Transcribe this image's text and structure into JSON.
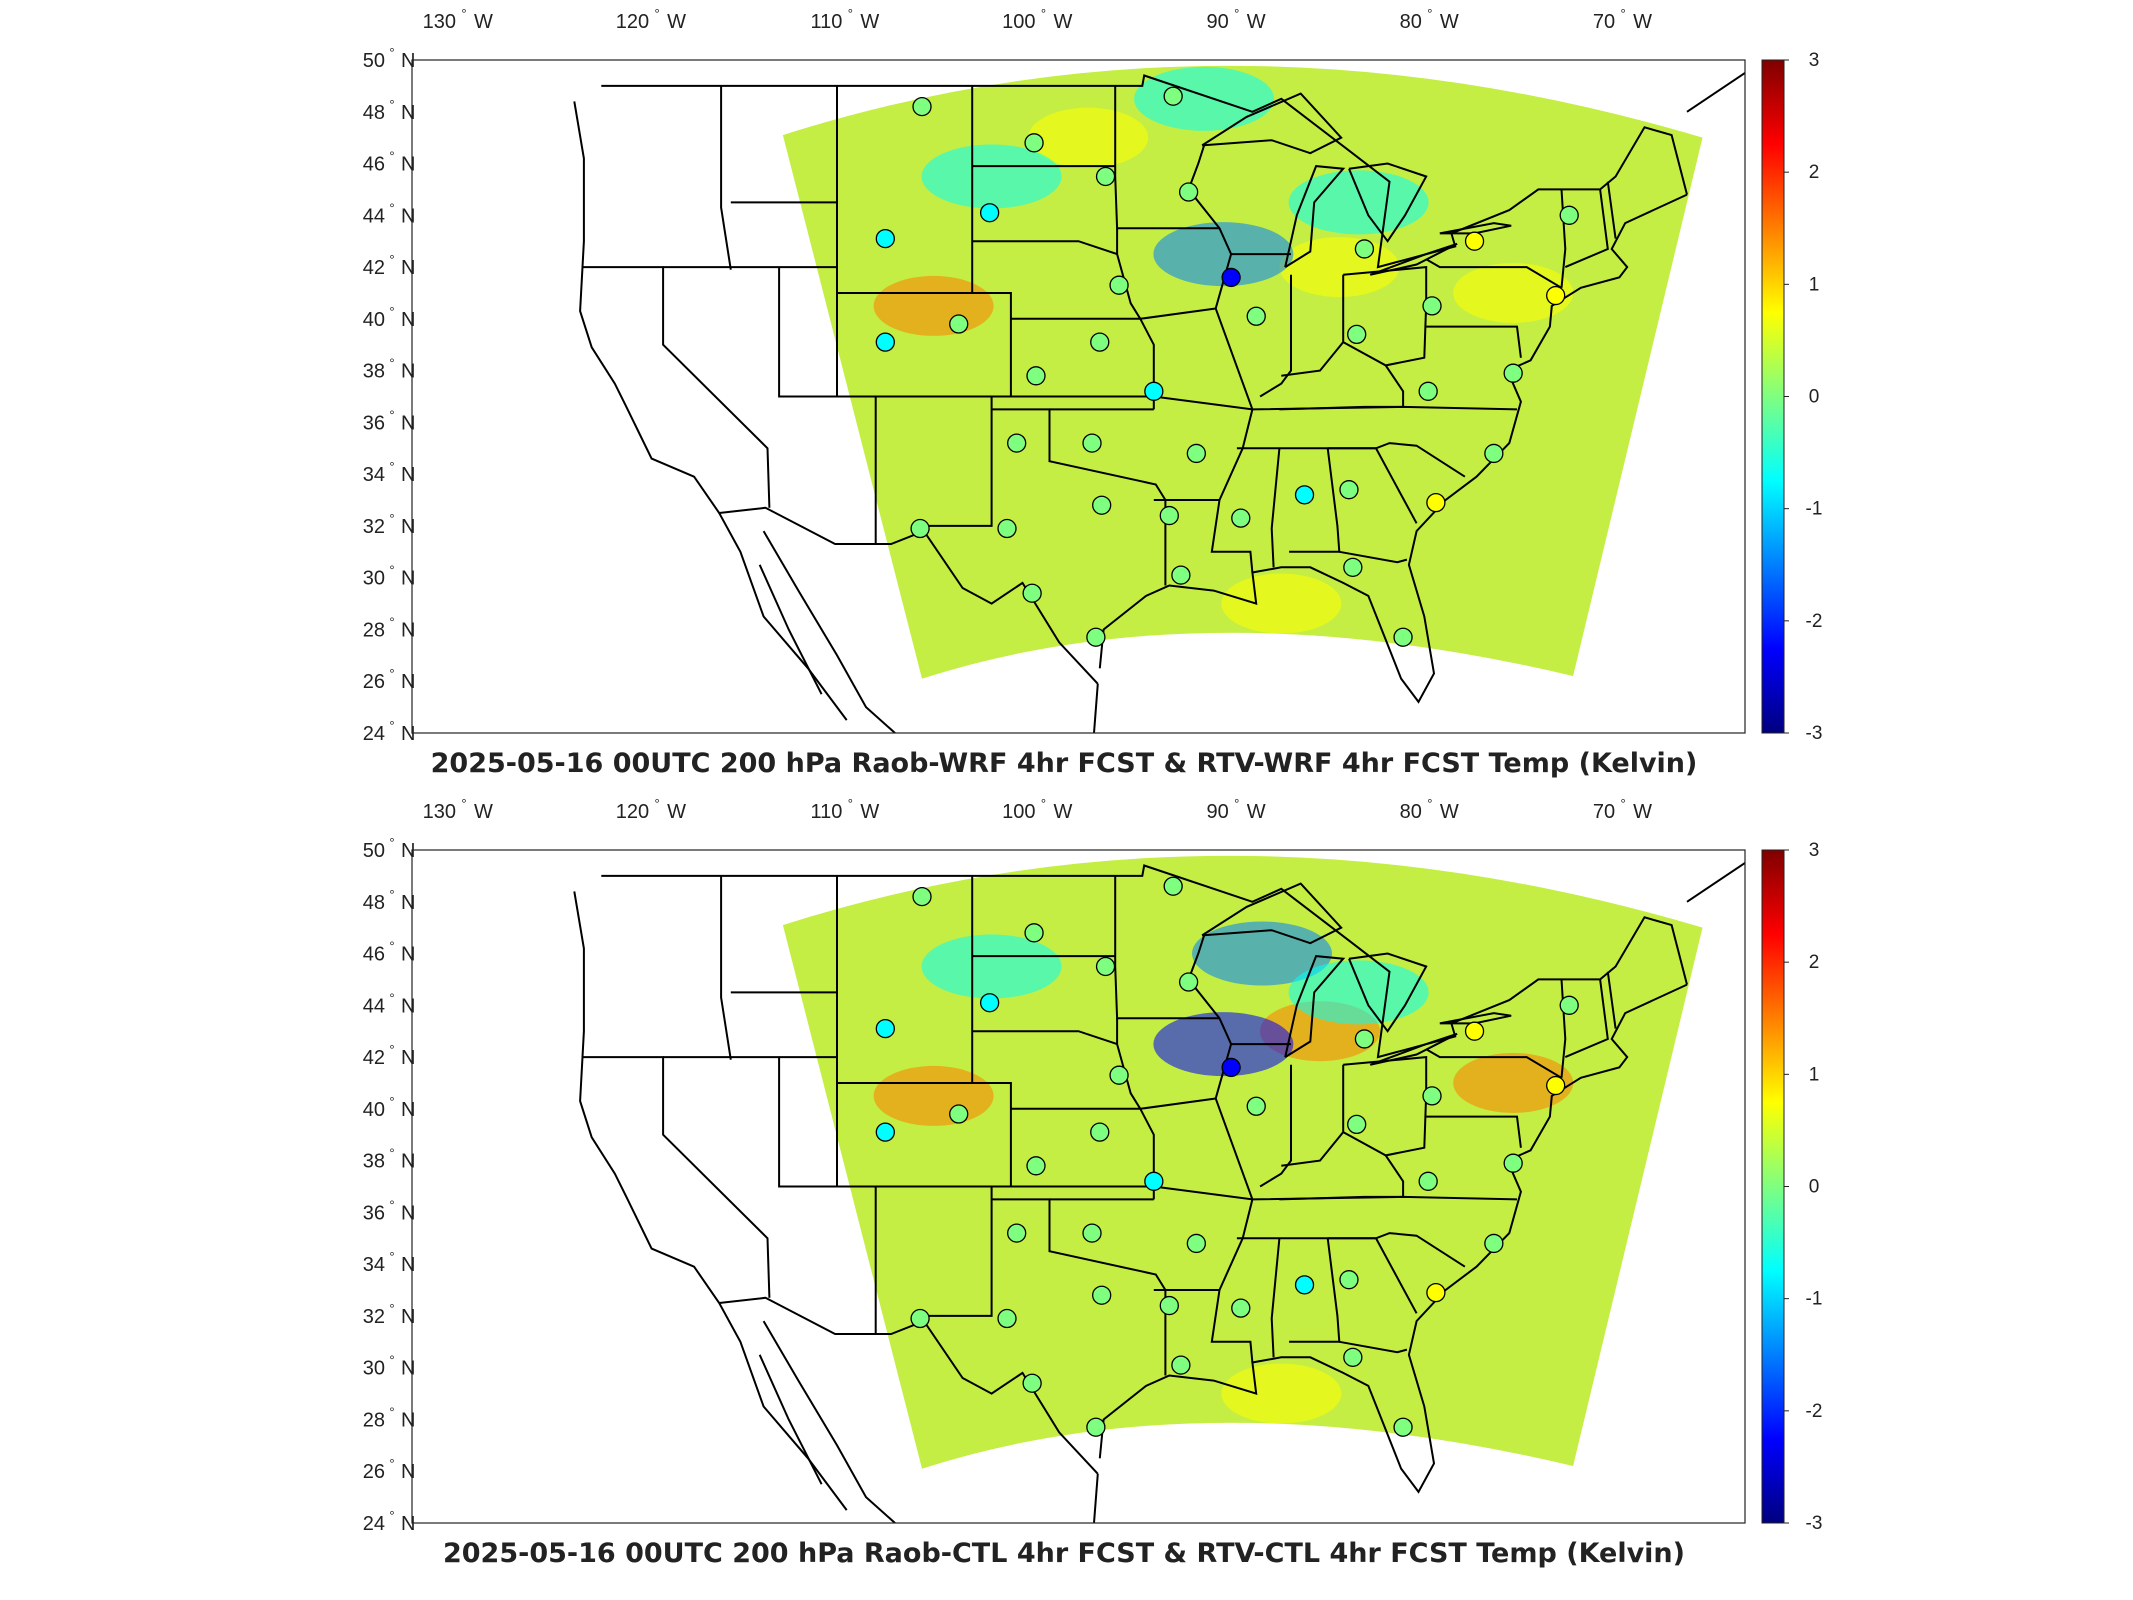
{
  "panels": [
    {
      "id": "top",
      "title": "2025-05-16 00UTC 200 hPa Raob-WRF 4hr FCST & RTV-WRF 4hr FCST Temp (Kelvin)",
      "stations_highlight": [
        "cyan-north-plains",
        "cyan-midwest",
        "blue-great-lakes",
        "cyan-gulf"
      ],
      "hotspots": [
        {
          "lon": -98,
          "lat": 47,
          "value": 0.9
        },
        {
          "lon": -106,
          "lat": 40.5,
          "value": 1.3
        },
        {
          "lon": -85,
          "lat": 42,
          "value": 1.0
        },
        {
          "lon": -76,
          "lat": 41,
          "value": 1.1
        },
        {
          "lon": -88,
          "lat": 29,
          "value": 0.8
        }
      ],
      "coldspots": [
        {
          "lon": -91,
          "lat": 42.5,
          "value": -1.8
        },
        {
          "lon": -92,
          "lat": 48.5,
          "value": -1.0
        },
        {
          "lon": -84,
          "lat": 44.5,
          "value": -0.9
        },
        {
          "lon": -103,
          "lat": 45.5,
          "value": -0.7
        }
      ]
    },
    {
      "id": "bottom",
      "title": "2025-05-16 00UTC 200 hPa Raob-CTL 4hr FCST & RTV-CTL 4hr FCST Temp (Kelvin)",
      "hotspots": [
        {
          "lon": -106,
          "lat": 40.5,
          "value": 1.2
        },
        {
          "lon": -76,
          "lat": 41,
          "value": 1.2
        },
        {
          "lon": -88,
          "lat": 29,
          "value": 0.8
        },
        {
          "lon": -86,
          "lat": 43,
          "value": 1.5
        }
      ],
      "coldspots": [
        {
          "lon": -91,
          "lat": 42.5,
          "value": -1.9
        },
        {
          "lon": -89,
          "lat": 46,
          "value": -1.3
        },
        {
          "lon": -84,
          "lat": 44.5,
          "value": -1.1
        },
        {
          "lon": -103,
          "lat": 45.5,
          "value": -0.8
        }
      ]
    }
  ],
  "lon_ticks": [
    {
      "deg": "130",
      "dir": "W"
    },
    {
      "deg": "120",
      "dir": "W"
    },
    {
      "deg": "110",
      "dir": "W"
    },
    {
      "deg": "100",
      "dir": "W"
    },
    {
      "deg": "90",
      "dir": "W"
    },
    {
      "deg": "80",
      "dir": "W"
    },
    {
      "deg": "70",
      "dir": "W"
    }
  ],
  "lat_ticks": [
    {
      "deg": "50",
      "dir": "N"
    },
    {
      "deg": "48",
      "dir": "N"
    },
    {
      "deg": "46",
      "dir": "N"
    },
    {
      "deg": "44",
      "dir": "N"
    },
    {
      "deg": "42",
      "dir": "N"
    },
    {
      "deg": "40",
      "dir": "N"
    },
    {
      "deg": "38",
      "dir": "N"
    },
    {
      "deg": "36",
      "dir": "N"
    },
    {
      "deg": "34",
      "dir": "N"
    },
    {
      "deg": "32",
      "dir": "N"
    },
    {
      "deg": "30",
      "dir": "N"
    },
    {
      "deg": "28",
      "dir": "N"
    },
    {
      "deg": "26",
      "dir": "N"
    },
    {
      "deg": "24",
      "dir": "N"
    }
  ],
  "colorbar": {
    "min": -3,
    "max": 3,
    "ticks": [
      "3",
      "2",
      "1",
      "0",
      "-1",
      "-2",
      "-3"
    ],
    "colors": [
      "#7f0000",
      "#ff0000",
      "#ff7f00",
      "#ffff00",
      "#7fff7f",
      "#00ffff",
      "#007fff",
      "#0000ff",
      "#00007f"
    ]
  },
  "stations": [
    {
      "lon": -106.6,
      "lat": 48.2,
      "value": 0.1
    },
    {
      "lon": -100.8,
      "lat": 46.8,
      "value": -0.1
    },
    {
      "lon": -97.1,
      "lat": 45.5,
      "value": 0.0
    },
    {
      "lon": -93.6,
      "lat": 48.6,
      "value": -0.2
    },
    {
      "lon": -92.8,
      "lat": 44.9,
      "value": 0.3
    },
    {
      "lon": -103.1,
      "lat": 44.1,
      "value": -0.4
    },
    {
      "lon": -108.5,
      "lat": 43.1,
      "value": -0.8
    },
    {
      "lon": -96.4,
      "lat": 41.3,
      "value": 0.0
    },
    {
      "lon": -90.6,
      "lat": 41.6,
      "value": -2.4
    },
    {
      "lon": -89.3,
      "lat": 40.1,
      "value": 0.0
    },
    {
      "lon": -83.7,
      "lat": 42.7,
      "value": 0.2
    },
    {
      "lon": -84.1,
      "lat": 39.4,
      "value": 0.0
    },
    {
      "lon": -80.2,
      "lat": 40.5,
      "value": 0.2
    },
    {
      "lon": -78.0,
      "lat": 43.0,
      "value": 0.4
    },
    {
      "lon": -73.8,
      "lat": 40.9,
      "value": 0.5
    },
    {
      "lon": -73.1,
      "lat": 44.0,
      "value": 0.2
    },
    {
      "lon": -76.0,
      "lat": 37.9,
      "value": 0.2
    },
    {
      "lon": -80.4,
      "lat": 37.2,
      "value": 0.1
    },
    {
      "lon": -77.0,
      "lat": 34.8,
      "value": 0.3
    },
    {
      "lon": -80.0,
      "lat": 32.9,
      "value": 0.4
    },
    {
      "lon": -84.5,
      "lat": 33.4,
      "value": 0.2
    },
    {
      "lon": -86.8,
      "lat": 33.2,
      "value": -0.6
    },
    {
      "lon": -90.1,
      "lat": 32.3,
      "value": 0.0
    },
    {
      "lon": -92.4,
      "lat": 34.8,
      "value": 0.1
    },
    {
      "lon": -93.8,
      "lat": 32.4,
      "value": 0.2
    },
    {
      "lon": -97.8,
      "lat": 35.2,
      "value": 0.1
    },
    {
      "lon": -101.7,
      "lat": 35.2,
      "value": 0.2
    },
    {
      "lon": -97.3,
      "lat": 32.8,
      "value": 0.3
    },
    {
      "lon": -102.2,
      "lat": 31.9,
      "value": 0.2
    },
    {
      "lon": -106.7,
      "lat": 31.9,
      "value": 0.0
    },
    {
      "lon": -100.9,
      "lat": 29.4,
      "value": 0.3
    },
    {
      "lon": -97.6,
      "lat": 27.7,
      "value": -0.3
    },
    {
      "lon": -93.2,
      "lat": 30.1,
      "value": 0.1
    },
    {
      "lon": -84.3,
      "lat": 30.4,
      "value": 0.3
    },
    {
      "lon": -81.7,
      "lat": 27.7,
      "value": 0.1
    },
    {
      "lon": -94.6,
      "lat": 37.2,
      "value": -0.7
    },
    {
      "lon": -97.4,
      "lat": 39.1,
      "value": -0.3
    },
    {
      "lon": -104.7,
      "lat": 39.8,
      "value": 0.0
    },
    {
      "lon": -108.5,
      "lat": 39.1,
      "value": -0.5
    },
    {
      "lon": -100.7,
      "lat": 37.8,
      "value": 0.1
    }
  ]
}
